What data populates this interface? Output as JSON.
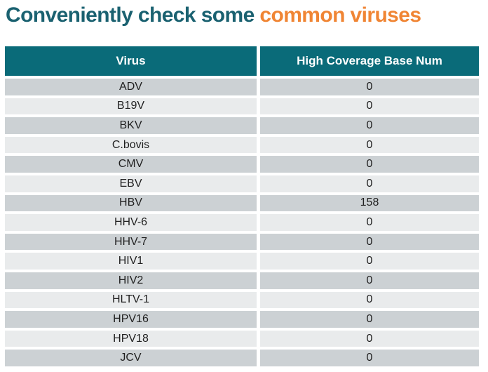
{
  "title": {
    "primary": "Conveniently check some ",
    "highlight": "common viruses"
  },
  "colors": {
    "title_teal": "#1a6170",
    "highlight_orange": "#f08534",
    "header_bg": "#0a6b79",
    "header_text": "#ffffff",
    "row_dark": "#ccd1d4",
    "row_light": "#e9ebec",
    "cell_text": "#1f1f1f"
  },
  "table": {
    "columns": [
      "Virus",
      "High Coverage Base Num"
    ],
    "rows": [
      {
        "virus": "ADV",
        "value": "0"
      },
      {
        "virus": "B19V",
        "value": "0"
      },
      {
        "virus": "BKV",
        "value": "0"
      },
      {
        "virus": "C.bovis",
        "value": "0"
      },
      {
        "virus": "CMV",
        "value": "0"
      },
      {
        "virus": "EBV",
        "value": "0"
      },
      {
        "virus": "HBV",
        "value": "158"
      },
      {
        "virus": "HHV-6",
        "value": "0"
      },
      {
        "virus": "HHV-7",
        "value": "0"
      },
      {
        "virus": "HIV1",
        "value": "0"
      },
      {
        "virus": "HIV2",
        "value": "0"
      },
      {
        "virus": "HLTV-1",
        "value": "0"
      },
      {
        "virus": "HPV16",
        "value": "0"
      },
      {
        "virus": "HPV18",
        "value": "0"
      },
      {
        "virus": "JCV",
        "value": "0"
      }
    ]
  }
}
